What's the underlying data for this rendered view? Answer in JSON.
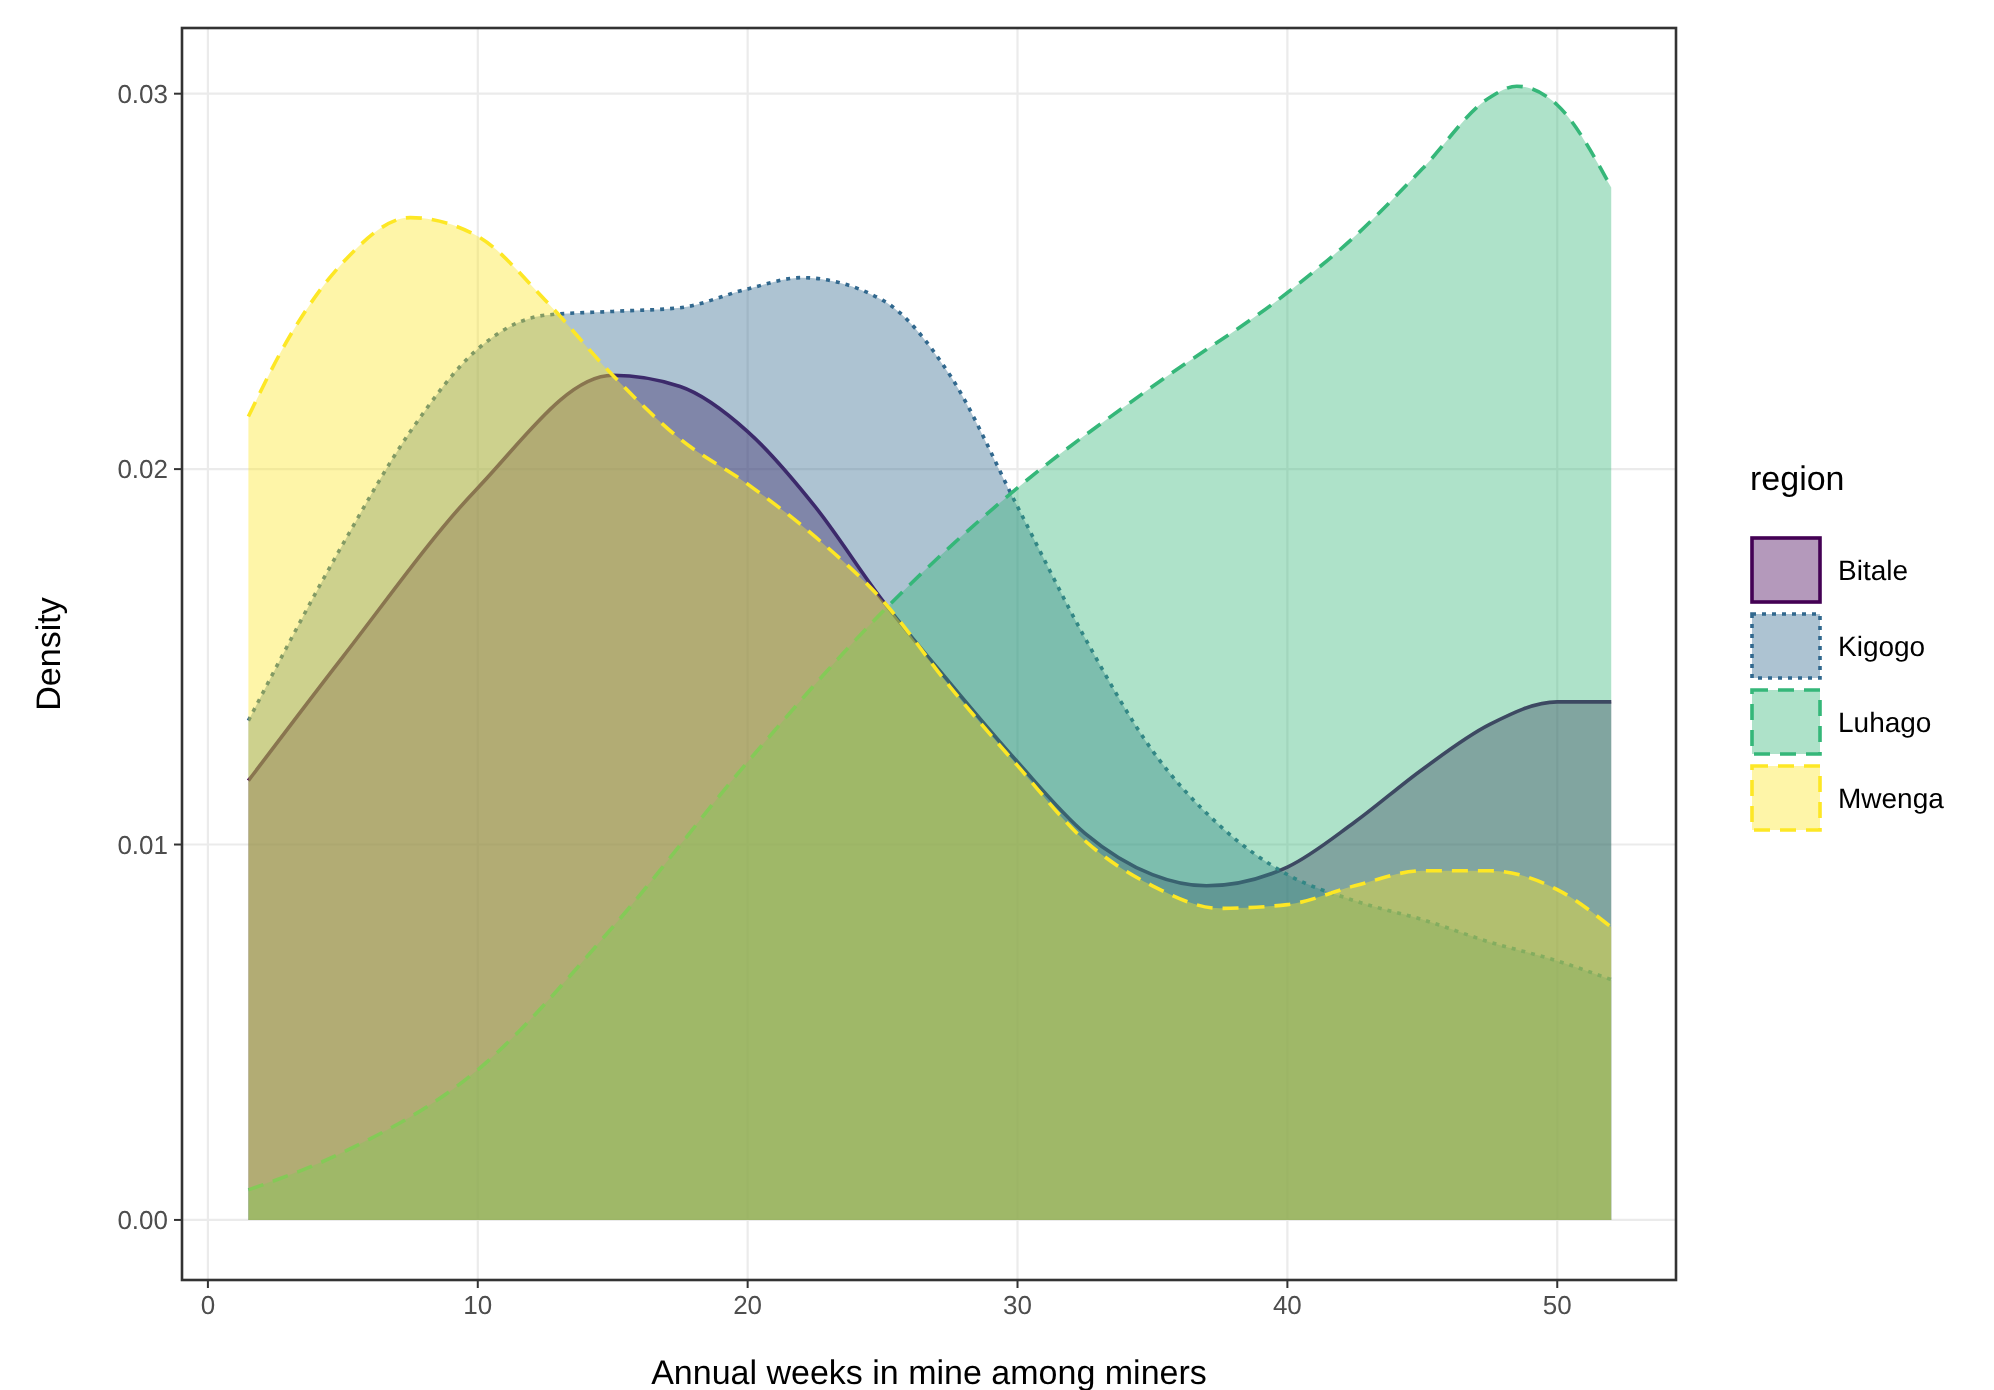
{
  "chart_data": {
    "type": "area",
    "xlabel": "Annual weeks in mine among miners",
    "ylabel": "Density",
    "legend_title": "region",
    "legend": "right",
    "grid": true,
    "xlim": [
      -0.96,
      54.4
    ],
    "ylim": [
      -0.0016,
      0.03175
    ],
    "xticks": [
      0,
      10,
      20,
      30,
      40,
      50
    ],
    "yticks": [
      {
        "value": 0,
        "label": "0.00"
      },
      {
        "value": 0.01,
        "label": "0.01"
      },
      {
        "value": 0.02,
        "label": "0.02"
      },
      {
        "value": 0.03,
        "label": "0.03"
      }
    ],
    "series": [
      {
        "name": "Bitale",
        "color": "#440154",
        "line_style": "solid",
        "x": [
          1.5,
          5,
          10,
          15,
          17.5,
          20,
          22.5,
          25,
          27.5,
          30,
          32.5,
          35,
          37,
          40,
          42.5,
          45,
          47.5,
          50,
          52
        ],
        "values": [
          0.0117,
          0.015,
          0.0195,
          0.0225,
          0.0222,
          0.021,
          0.019,
          0.0165,
          0.0143,
          0.0122,
          0.0103,
          0.0092,
          0.0089,
          0.0094,
          0.0106,
          0.012,
          0.0132,
          0.0138,
          0.0138
        ]
      },
      {
        "name": "Kigogo",
        "color": "#31688e",
        "line_style": "dotted",
        "x": [
          1.5,
          5,
          7.5,
          10,
          12.5,
          15,
          17.5,
          20,
          22,
          25,
          27.5,
          30,
          32.5,
          35,
          37.5,
          40,
          42.5,
          45,
          47.5,
          50,
          52
        ],
        "values": [
          0.0133,
          0.018,
          0.021,
          0.0232,
          0.0241,
          0.0242,
          0.0243,
          0.0248,
          0.0251,
          0.0245,
          0.0225,
          0.019,
          0.0155,
          0.0125,
          0.0105,
          0.0092,
          0.0085,
          0.008,
          0.0074,
          0.0069,
          0.0064
        ]
      },
      {
        "name": "Luhago",
        "color": "#35b779",
        "line_style": "dashed",
        "x": [
          1.5,
          5,
          10,
          15,
          20,
          25,
          30,
          35,
          40,
          42.5,
          45,
          47.5,
          48.5,
          50,
          52
        ],
        "values": [
          0.0008,
          0.0018,
          0.004,
          0.0078,
          0.0122,
          0.0162,
          0.0195,
          0.0222,
          0.0247,
          0.0262,
          0.028,
          0.0299,
          0.0302,
          0.0297,
          0.0275
        ]
      },
      {
        "name": "Mwenga",
        "color": "#fde725",
        "line_style": "dashed",
        "x": [
          1.5,
          3,
          5,
          7.5,
          10,
          12.5,
          15,
          17.5,
          20,
          22.5,
          25,
          27.5,
          30,
          32.5,
          35,
          37.5,
          40,
          42.5,
          45,
          47.5,
          50,
          52
        ],
        "values": [
          0.0214,
          0.0235,
          0.0255,
          0.0267,
          0.0262,
          0.0245,
          0.0225,
          0.0208,
          0.0196,
          0.0182,
          0.0165,
          0.0142,
          0.0121,
          0.0101,
          0.0089,
          0.0083,
          0.0084,
          0.0089,
          0.0093,
          0.0093,
          0.0088,
          0.0078
        ]
      }
    ]
  }
}
